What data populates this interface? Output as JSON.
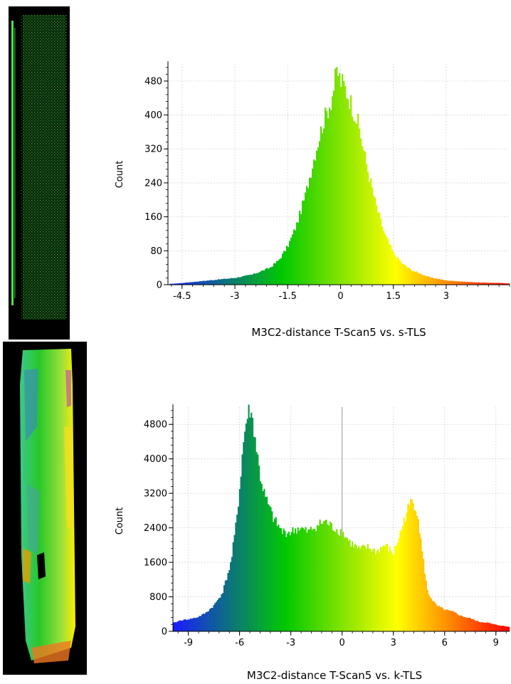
{
  "panels": [
    {
      "name": "point-cloud-s-tls"
    },
    {
      "name": "point-cloud-k-tls"
    }
  ],
  "chart_data": [
    {
      "type": "bar",
      "title": "",
      "xlabel": "M3C2-distance T-Scan5 vs. s-TLS",
      "ylabel": "Count",
      "xlim": [
        -4.9,
        4.8
      ],
      "ylim": [
        0,
        520
      ],
      "xticks": [
        -4.5,
        -3,
        -1.5,
        0,
        1.5,
        3
      ],
      "yticks": [
        0,
        80,
        160,
        240,
        320,
        400,
        480
      ],
      "grid": true,
      "colormap": [
        "#1a1aff",
        "#00c800",
        "#ffff00",
        "#ff0000"
      ],
      "x": [
        -4.8,
        -4.5,
        -4.0,
        -3.5,
        -3.0,
        -2.5,
        -2.0,
        -1.75,
        -1.5,
        -1.25,
        -1.0,
        -0.75,
        -0.5,
        -0.25,
        -0.1,
        0.0,
        0.1,
        0.25,
        0.5,
        0.75,
        1.0,
        1.25,
        1.5,
        1.75,
        2.0,
        2.5,
        3.0,
        3.5,
        4.0,
        4.5,
        4.8
      ],
      "values": [
        2,
        4,
        8,
        12,
        16,
        24,
        40,
        58,
        90,
        140,
        210,
        300,
        380,
        440,
        505,
        480,
        470,
        440,
        380,
        280,
        190,
        120,
        75,
        50,
        35,
        18,
        10,
        7,
        5,
        4,
        3
      ]
    },
    {
      "type": "bar",
      "title": "",
      "xlabel": "M3C2-distance T-Scan5 vs. k-TLS",
      "ylabel": "Count",
      "xlim": [
        -9.9,
        9.8
      ],
      "ylim": [
        0,
        5200
      ],
      "xticks": [
        -9,
        -6,
        -3,
        0,
        3,
        6,
        9
      ],
      "yticks": [
        0,
        800,
        1600,
        2400,
        3200,
        4000,
        4800
      ],
      "grid": true,
      "colormap": [
        "#1a1aff",
        "#00c800",
        "#ffff00",
        "#ff0000"
      ],
      "x": [
        -9.8,
        -9.5,
        -9.0,
        -8.5,
        -8.0,
        -7.5,
        -7.0,
        -6.5,
        -6.2,
        -6.0,
        -5.8,
        -5.6,
        -5.4,
        -5.2,
        -5.0,
        -4.8,
        -4.5,
        -4.0,
        -3.5,
        -3.0,
        -2.5,
        -2.0,
        -1.5,
        -1.0,
        -0.5,
        0.0,
        0.5,
        1.0,
        1.5,
        2.0,
        2.5,
        3.0,
        3.5,
        3.8,
        4.1,
        4.4,
        4.7,
        5.0,
        5.5,
        6.0,
        6.5,
        7.0,
        7.5,
        8.0,
        8.5,
        9.0,
        9.5,
        9.8
      ],
      "values": [
        200,
        250,
        280,
        320,
        420,
        600,
        900,
        1600,
        2500,
        3300,
        4300,
        4900,
        5150,
        4800,
        4200,
        3600,
        3100,
        2600,
        2300,
        2300,
        2400,
        2300,
        2450,
        2550,
        2400,
        2300,
        2050,
        1900,
        1950,
        1850,
        2000,
        1800,
        2400,
        2800,
        3050,
        2800,
        1800,
        900,
        600,
        500,
        450,
        350,
        300,
        220,
        200,
        150,
        120,
        100
      ]
    }
  ]
}
